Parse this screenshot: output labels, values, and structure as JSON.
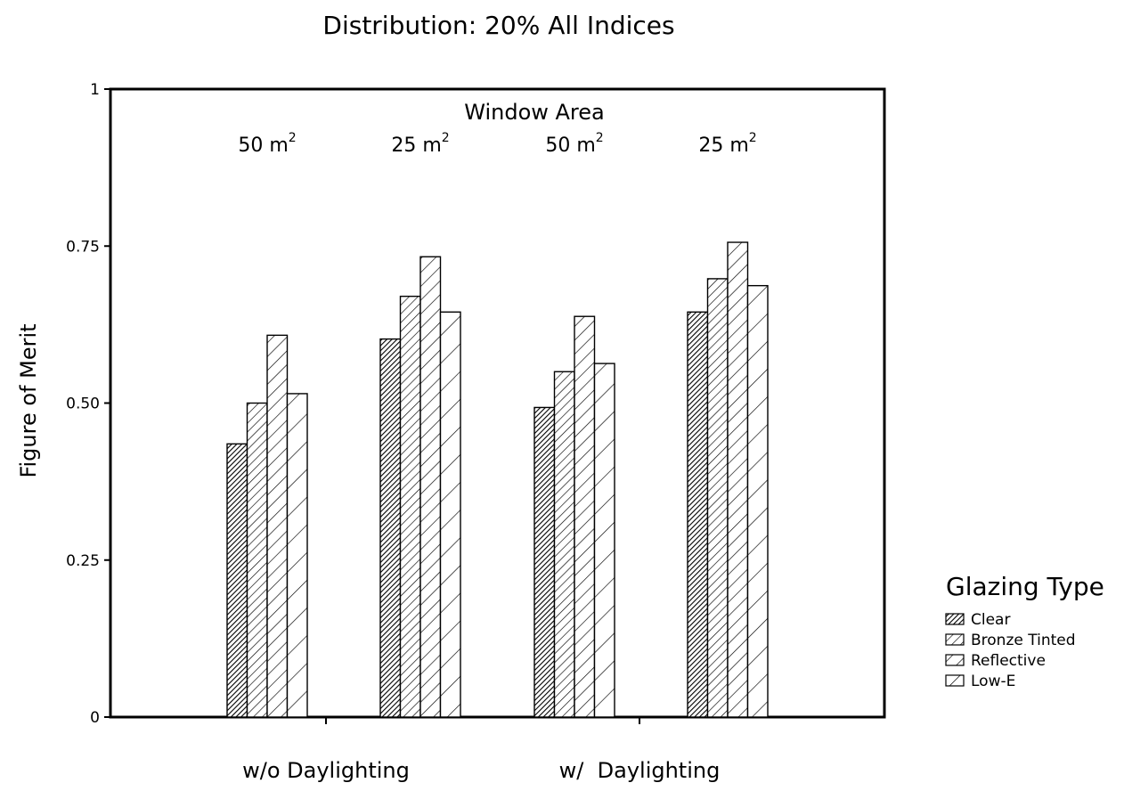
{
  "chart_data": {
    "type": "bar",
    "title": "Distribution: 20% All Indices",
    "ylabel": "Figure of Merit",
    "ylim": [
      0,
      1
    ],
    "yticks": [
      {
        "value": 0,
        "label": "0"
      },
      {
        "value": 0.25,
        "label": "0.25"
      },
      {
        "value": 0.5,
        "label": "0.50"
      },
      {
        "value": 0.75,
        "label": "0.75"
      },
      {
        "value": 1,
        "label": "1"
      }
    ],
    "top_axis_title": "Window Area",
    "categories": [
      "50 m²",
      "25 m²",
      "50 m²",
      "25 m²"
    ],
    "category_units": [
      {
        "base": "50 m",
        "sup": "2"
      },
      {
        "base": "25 m",
        "sup": "2"
      },
      {
        "base": "50 m",
        "sup": "2"
      },
      {
        "base": "25 m",
        "sup": "2"
      }
    ],
    "group_labels": [
      "w/o Daylighting",
      "w/  Daylighting"
    ],
    "legend": {
      "title": "Glazing Type",
      "position": "right"
    },
    "grid": false,
    "series": [
      {
        "name": "Clear",
        "values": [
          0.435,
          0.602,
          0.493,
          0.645
        ]
      },
      {
        "name": "Bronze Tinted",
        "values": [
          0.5,
          0.67,
          0.55,
          0.698
        ]
      },
      {
        "name": "Reflective",
        "values": [
          0.608,
          0.733,
          0.638,
          0.756
        ]
      },
      {
        "name": "Low-E",
        "values": [
          0.515,
          0.645,
          0.563,
          0.687
        ]
      }
    ]
  }
}
